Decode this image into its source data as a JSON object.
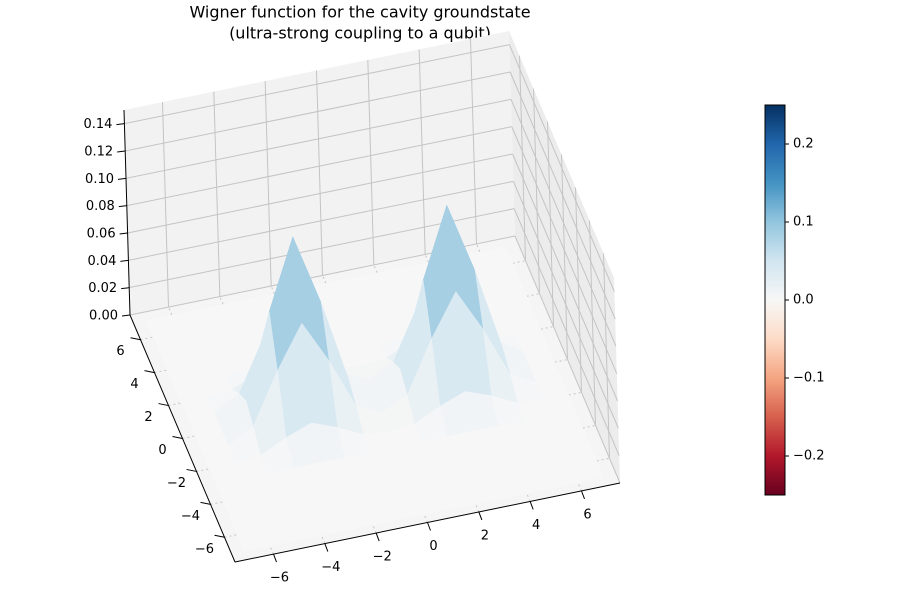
{
  "chart_data": {
    "type": "surface",
    "title": [
      "Wigner function for the cavity groundstate",
      "(ultra-strong coupling to a qubit)"
    ],
    "x": [
      -7,
      -6,
      -5,
      -4,
      -3,
      -2,
      -1,
      0,
      1,
      2,
      3,
      4,
      5,
      6,
      7
    ],
    "y": [
      -7,
      -6,
      -5,
      -4,
      -3,
      -2,
      -1,
      0,
      1,
      2,
      3,
      4,
      5,
      6,
      7
    ],
    "z": [
      [
        0,
        0,
        0,
        0,
        0,
        0,
        0,
        0,
        0,
        0,
        0,
        0,
        0,
        0,
        0
      ],
      [
        0,
        0,
        0,
        0,
        0,
        0,
        0,
        0,
        0,
        0,
        0,
        0,
        0,
        0,
        0
      ],
      [
        0,
        0,
        0,
        0,
        0,
        0,
        0,
        0,
        0,
        0,
        0,
        0,
        0,
        0,
        0
      ],
      [
        0,
        0,
        0,
        0,
        0,
        0,
        0,
        0,
        0,
        0,
        0,
        0,
        0,
        0,
        0
      ],
      [
        0,
        0,
        0,
        0.001,
        0.001,
        0.001,
        0,
        0,
        0,
        0.001,
        0.001,
        0.001,
        0,
        0,
        0
      ],
      [
        0,
        0,
        0.002,
        0.011,
        0.018,
        0.011,
        0.002,
        0,
        0.002,
        0.011,
        0.018,
        0.011,
        0.002,
        0,
        0
      ],
      [
        0,
        0.001,
        0.011,
        0.048,
        0.079,
        0.048,
        0.011,
        0.002,
        0.011,
        0.048,
        0.079,
        0.048,
        0.011,
        0.001,
        0
      ],
      [
        0,
        0.001,
        0.018,
        0.079,
        0.13,
        0.079,
        0.018,
        0.003,
        0.018,
        0.079,
        0.13,
        0.079,
        0.018,
        0.001,
        0
      ],
      [
        0,
        0.001,
        0.011,
        0.048,
        0.079,
        0.048,
        0.011,
        0.002,
        0.011,
        0.048,
        0.079,
        0.048,
        0.011,
        0.001,
        0
      ],
      [
        0,
        0,
        0.002,
        0.011,
        0.018,
        0.011,
        0.002,
        0,
        0.002,
        0.011,
        0.018,
        0.011,
        0.002,
        0,
        0
      ],
      [
        0,
        0,
        0,
        0.001,
        0.001,
        0.001,
        0,
        0,
        0,
        0.001,
        0.001,
        0.001,
        0,
        0,
        0
      ],
      [
        0,
        0,
        0,
        0,
        0,
        0,
        0,
        0,
        0,
        0,
        0,
        0,
        0,
        0,
        0
      ],
      [
        0,
        0,
        0,
        0,
        0,
        0,
        0,
        0,
        0,
        0,
        0,
        0,
        0,
        0,
        0
      ],
      [
        0,
        0,
        0,
        0,
        0,
        0,
        0,
        0,
        0,
        0,
        0,
        0,
        0,
        0,
        0
      ],
      [
        0,
        0,
        0,
        0,
        0,
        0,
        0,
        0,
        0,
        0,
        0,
        0,
        0,
        0,
        0
      ]
    ],
    "xlim": [
      -7.5,
      7.5
    ],
    "ylim": [
      -7.5,
      7.5
    ],
    "zlim": [
      0,
      0.15
    ],
    "xticks": [
      {
        "value": -6,
        "label": "−6"
      },
      {
        "value": -4,
        "label": "−4"
      },
      {
        "value": -2,
        "label": "−2"
      },
      0,
      2,
      4,
      6
    ],
    "yticks": [
      {
        "value": -6,
        "label": "−6"
      },
      {
        "value": -4,
        "label": "−4"
      },
      {
        "value": -2,
        "label": "−2"
      },
      0,
      2,
      4,
      6
    ],
    "zticks": [
      {
        "value": 0,
        "label": "0.00"
      },
      {
        "value": 0.02,
        "label": "0.02"
      },
      {
        "value": 0.04,
        "label": "0.04"
      },
      {
        "value": 0.06,
        "label": "0.06"
      },
      {
        "value": 0.08,
        "label": "0.08"
      },
      {
        "value": 0.1,
        "label": "0.10"
      },
      {
        "value": 0.12,
        "label": "0.12"
      },
      {
        "value": 0.14,
        "label": "0.14"
      }
    ],
    "clim": [
      -0.25,
      0.25
    ],
    "cticks": [
      {
        "value": -0.2,
        "label": "−0.2"
      },
      {
        "value": -0.1,
        "label": "−0.1"
      },
      {
        "value": 0,
        "label": "0.0"
      },
      0.1,
      0.2
    ],
    "colormap": [
      "#67001f",
      "#b2182b",
      "#d6604d",
      "#f4a582",
      "#fddbc7",
      "#f7f7f7",
      "#d1e5f0",
      "#92c5de",
      "#4393c3",
      "#2166ac",
      "#053061"
    ],
    "grid": true
  }
}
